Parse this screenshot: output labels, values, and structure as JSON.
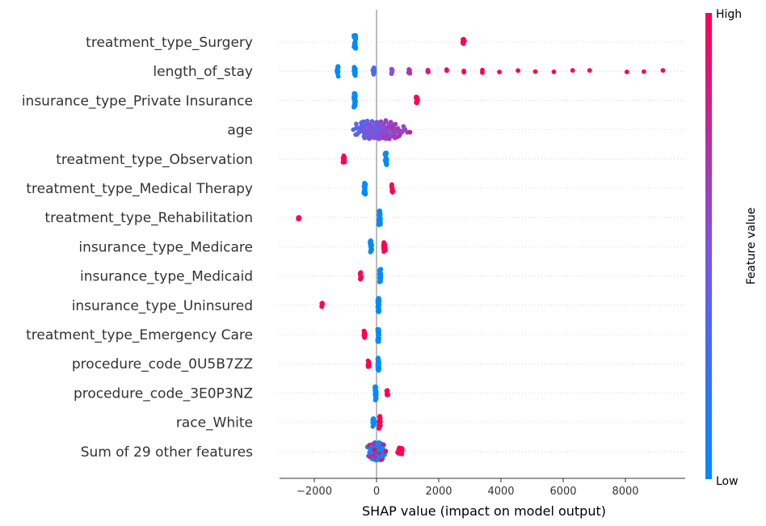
{
  "chart_data": {
    "type": "scatter",
    "subtype": "shap-beeswarm",
    "title": "",
    "xlabel": "SHAP value (impact on model output)",
    "xlim": [
      -3100,
      9600
    ],
    "xticks": [
      -2000,
      0,
      2000,
      4000,
      6000,
      8000
    ],
    "xtick_labels": [
      "−2000",
      "0",
      "2000",
      "4000",
      "6000",
      "8000"
    ],
    "colorbar": {
      "label": "Feature value",
      "high_label": "High",
      "low_label": "Low",
      "low_color": "#008bfb",
      "mid_color": "#7f54e0",
      "high_color": "#ff0052"
    },
    "features": [
      {
        "name": "treatment_type_Surgery",
        "clusters": [
          {
            "x": -700,
            "spread": 30,
            "density": 26,
            "color": 0.0
          },
          {
            "x": 2800,
            "spread": 30,
            "density": 10,
            "color": 1.0
          }
        ]
      },
      {
        "name": "length_of_stay",
        "clusters": [
          {
            "x": -1250,
            "spread": 25,
            "density": 18,
            "color": 0.0
          },
          {
            "x": -700,
            "spread": 25,
            "density": 14,
            "color": 0.0
          },
          {
            "x": -100,
            "spread": 25,
            "density": 10,
            "color": 0.3
          },
          {
            "x": 500,
            "spread": 20,
            "density": 7,
            "color": 0.5
          },
          {
            "x": 1050,
            "spread": 20,
            "density": 5,
            "color": 0.7
          },
          {
            "x": 1650,
            "spread": 20,
            "density": 4,
            "color": 0.85
          },
          {
            "x": 2250,
            "spread": 10,
            "density": 2,
            "color": 0.95
          },
          {
            "x": 2800,
            "spread": 10,
            "density": 2,
            "color": 1.0
          },
          {
            "x": 3400,
            "spread": 10,
            "density": 2,
            "color": 1.0
          },
          {
            "x": 3950,
            "spread": 5,
            "density": 1,
            "color": 1.0
          },
          {
            "x": 4550,
            "spread": 5,
            "density": 1,
            "color": 1.0
          },
          {
            "x": 5100,
            "spread": 5,
            "density": 1,
            "color": 1.0
          },
          {
            "x": 5700,
            "spread": 5,
            "density": 1,
            "color": 1.0
          },
          {
            "x": 6300,
            "spread": 5,
            "density": 1,
            "color": 1.0
          },
          {
            "x": 6850,
            "spread": 5,
            "density": 1,
            "color": 1.0
          },
          {
            "x": 8050,
            "spread": 5,
            "density": 1,
            "color": 1.0
          },
          {
            "x": 8600,
            "spread": 5,
            "density": 1,
            "color": 1.0
          },
          {
            "x": 9200,
            "spread": 5,
            "density": 1,
            "color": 1.0
          }
        ]
      },
      {
        "name": "insurance_type_Private Insurance",
        "clusters": [
          {
            "x": -700,
            "spread": 30,
            "density": 26,
            "color": 0.0
          },
          {
            "x": 1300,
            "spread": 30,
            "density": 12,
            "color": 1.0
          }
        ]
      },
      {
        "name": "age",
        "clusters": [
          {
            "x": 100,
            "spread": 2500,
            "density": 150,
            "color": "gradient",
            "gmin": -2200,
            "gmax": 2300
          }
        ]
      },
      {
        "name": "treatment_type_Observation",
        "clusters": [
          {
            "x": -1050,
            "spread": 30,
            "density": 10,
            "color": 1.0
          },
          {
            "x": 300,
            "spread": 30,
            "density": 22,
            "color": 0.0
          }
        ]
      },
      {
        "name": "treatment_type_Medical Therapy",
        "clusters": [
          {
            "x": -380,
            "spread": 30,
            "density": 22,
            "color": 0.0
          },
          {
            "x": 500,
            "spread": 30,
            "density": 12,
            "color": 1.0
          }
        ]
      },
      {
        "name": "treatment_type_Rehabilitation",
        "clusters": [
          {
            "x": -2500,
            "spread": 20,
            "density": 4,
            "color": 1.0
          },
          {
            "x": 100,
            "spread": 30,
            "density": 28,
            "color": 0.0
          }
        ]
      },
      {
        "name": "insurance_type_Medicare",
        "clusters": [
          {
            "x": -180,
            "spread": 30,
            "density": 22,
            "color": 0.0
          },
          {
            "x": 250,
            "spread": 30,
            "density": 16,
            "color": 1.0
          }
        ]
      },
      {
        "name": "insurance_type_Medicaid",
        "clusters": [
          {
            "x": -500,
            "spread": 25,
            "density": 10,
            "color": 1.0
          },
          {
            "x": 120,
            "spread": 25,
            "density": 26,
            "color": 0.0
          }
        ]
      },
      {
        "name": "insurance_type_Uninsured",
        "clusters": [
          {
            "x": -1750,
            "spread": 20,
            "density": 6,
            "color": 1.0
          },
          {
            "x": 60,
            "spread": 25,
            "density": 26,
            "color": 0.0
          }
        ]
      },
      {
        "name": "treatment_type_Emergency Care",
        "clusters": [
          {
            "x": -400,
            "spread": 25,
            "density": 10,
            "color": 1.0
          },
          {
            "x": 60,
            "spread": 25,
            "density": 26,
            "color": 0.0
          }
        ]
      },
      {
        "name": "procedure_code_0U5B7ZZ",
        "clusters": [
          {
            "x": -250,
            "spread": 25,
            "density": 8,
            "color": 1.0
          },
          {
            "x": 60,
            "spread": 25,
            "density": 26,
            "color": 0.0
          }
        ]
      },
      {
        "name": "procedure_code_3E0P3NZ",
        "clusters": [
          {
            "x": -30,
            "spread": 25,
            "density": 26,
            "color": 0.0
          },
          {
            "x": 350,
            "spread": 25,
            "density": 7,
            "color": 1.0
          }
        ]
      },
      {
        "name": "race_White",
        "clusters": [
          {
            "x": -100,
            "spread": 25,
            "density": 20,
            "color": 0.0
          },
          {
            "x": 100,
            "spread": 25,
            "density": 22,
            "color": 1.0
          }
        ]
      },
      {
        "name": "Sum of 29 other features",
        "clusters": [
          {
            "x": 0,
            "spread": 850,
            "density": 110,
            "color": "mixed"
          },
          {
            "x": 750,
            "spread": 100,
            "density": 12,
            "color": 1.0
          }
        ]
      }
    ]
  }
}
